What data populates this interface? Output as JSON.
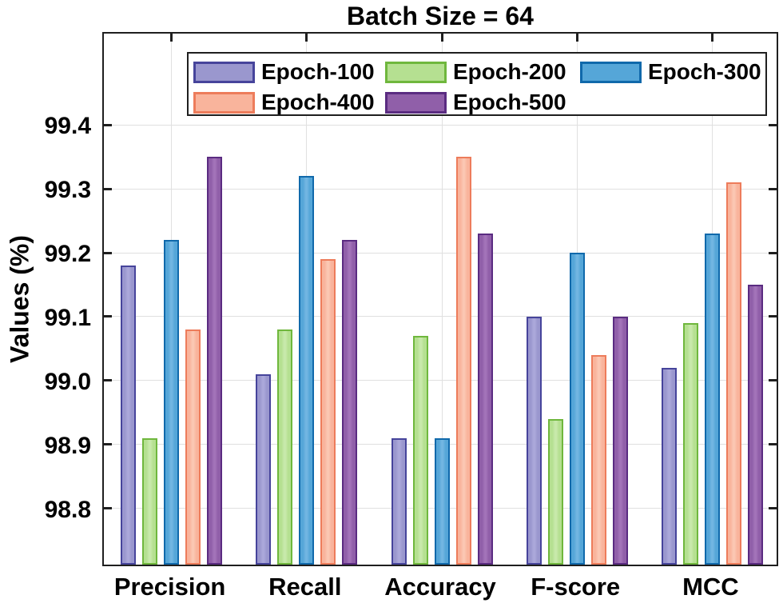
{
  "chart_data": {
    "type": "bar",
    "title": "Batch Size = 64",
    "xlabel": "",
    "ylabel": "Values (%)",
    "categories": [
      "Precision",
      "Recall",
      "Accuracy",
      "F-score",
      "MCC"
    ],
    "series": [
      {
        "name": "Epoch-100",
        "values": [
          99.18,
          99.01,
          98.91,
          99.1,
          99.02
        ],
        "fill": "#9a97ce",
        "fill_light": "#aba8da",
        "edge": "#46449b"
      },
      {
        "name": "Epoch-200",
        "values": [
          98.91,
          99.08,
          99.07,
          98.94,
          99.09
        ],
        "fill": "#b5e091",
        "fill_light": "#c8e9ab",
        "edge": "#6fb73d"
      },
      {
        "name": "Epoch-300",
        "values": [
          99.22,
          99.32,
          98.91,
          99.2,
          99.23
        ],
        "fill": "#55a6d8",
        "fill_light": "#72b6e2",
        "edge": "#1069ab"
      },
      {
        "name": "Epoch-400",
        "values": [
          99.08,
          99.19,
          99.35,
          99.04,
          99.31
        ],
        "fill": "#f9b49c",
        "fill_light": "#fbc7b3",
        "edge": "#ed7c5b"
      },
      {
        "name": "Epoch-500",
        "values": [
          99.35,
          99.22,
          99.23,
          99.1,
          99.15
        ],
        "fill": "#905fa9",
        "fill_light": "#a374b9",
        "edge": "#5a2b81"
      }
    ],
    "ytick_labels": [
      "98.8",
      "98.9",
      "99.0",
      "99.1",
      "99.2",
      "99.3",
      "99.4"
    ],
    "yticks": [
      98.8,
      98.9,
      99.0,
      99.1,
      99.2,
      99.3,
      99.4
    ],
    "ylim": [
      98.712,
      99.548
    ],
    "grid": true,
    "legend_position": "top-inside",
    "axis_color": "#1f1f1f",
    "grid_color": "#e0e0e0"
  }
}
